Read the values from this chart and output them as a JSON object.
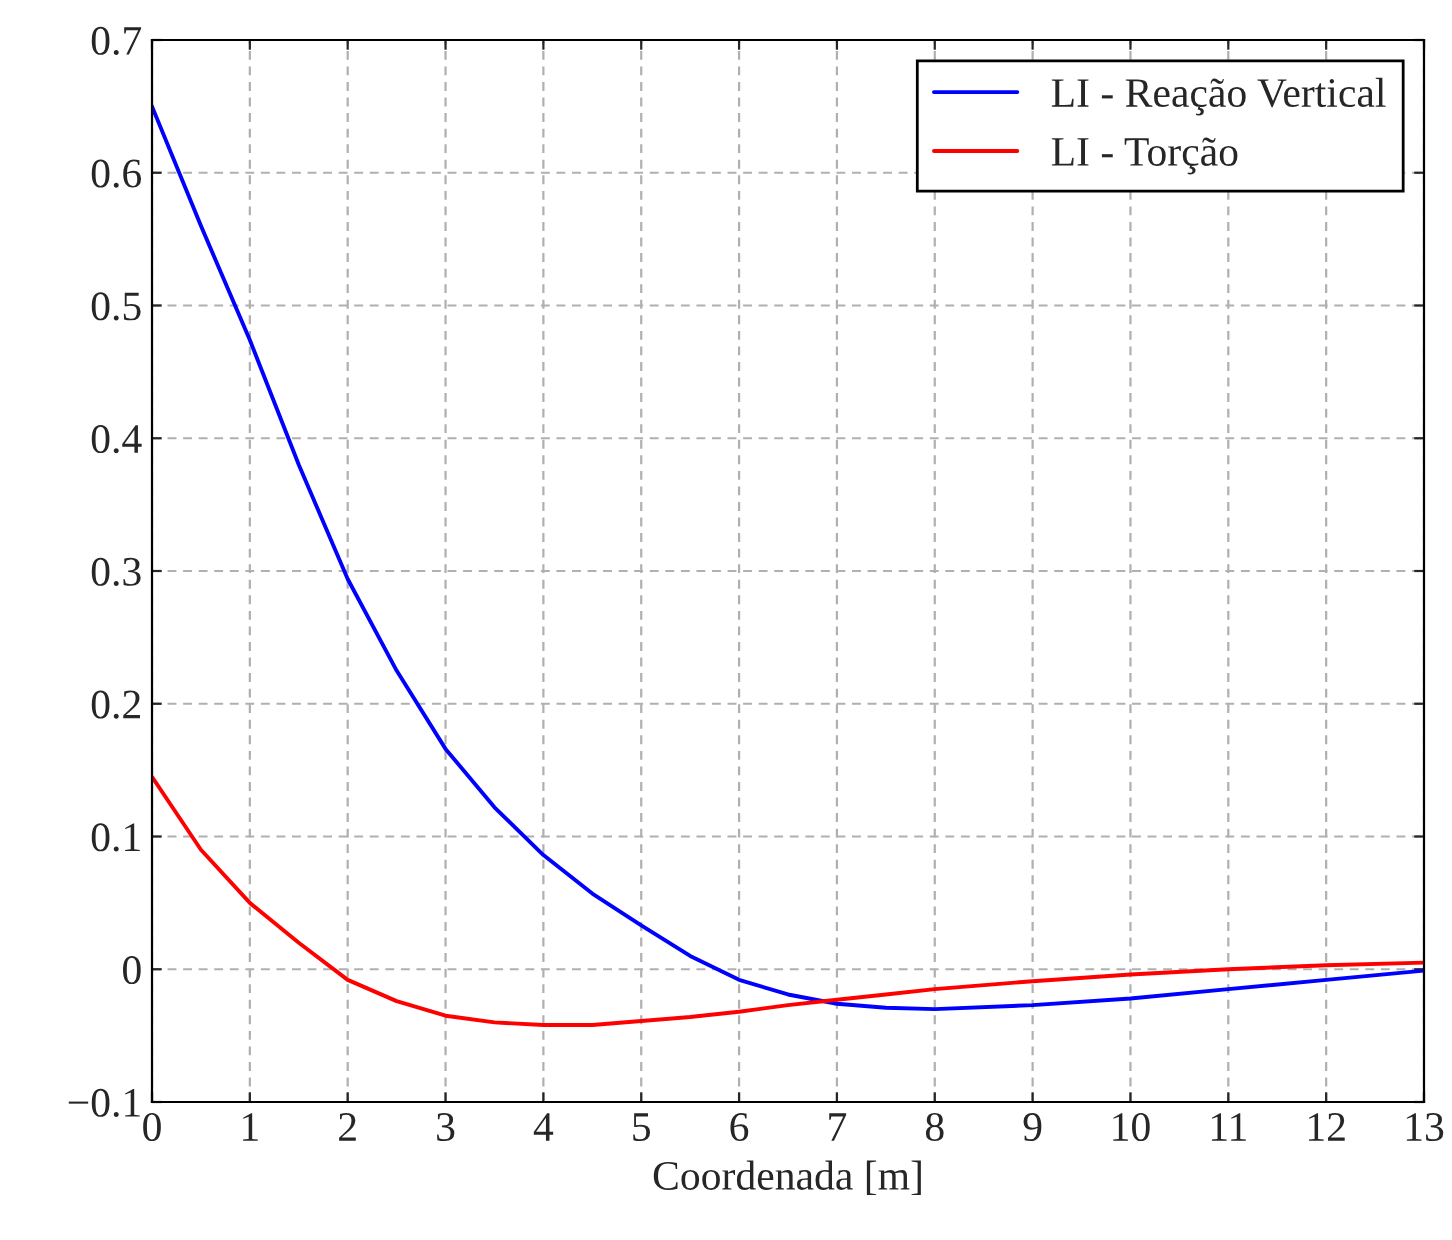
{
  "chart_data": {
    "type": "line",
    "xlabel": "Coordenada [m]",
    "x": [
      0,
      0.5,
      1,
      1.5,
      2,
      2.5,
      3,
      3.5,
      4,
      4.5,
      5,
      5.5,
      6,
      6.5,
      7,
      7.5,
      8,
      9,
      10,
      11,
      12,
      13
    ],
    "series": [
      {
        "name": "LI - Reação Vertical",
        "color": "#0000ff",
        "values": [
          0.65,
          0.56,
          0.474,
          0.38,
          0.294,
          0.225,
          0.166,
          0.122,
          0.086,
          0.057,
          0.033,
          0.01,
          -0.008,
          -0.019,
          -0.026,
          -0.029,
          -0.03,
          -0.027,
          -0.022,
          -0.015,
          -0.008,
          -0.001
        ]
      },
      {
        "name": "LI - Torção",
        "color": "#ff0000",
        "values": [
          0.145,
          0.09,
          0.05,
          0.02,
          -0.008,
          -0.024,
          -0.035,
          -0.04,
          -0.042,
          -0.042,
          -0.039,
          -0.036,
          -0.032,
          -0.027,
          -0.023,
          -0.019,
          -0.015,
          -0.009,
          -0.004,
          0.0,
          0.003,
          0.005
        ]
      }
    ],
    "xlim": [
      0,
      13
    ],
    "xticks": [
      0,
      1,
      2,
      3,
      4,
      5,
      6,
      7,
      8,
      9,
      10,
      11,
      12,
      13
    ],
    "ylim": [
      -0.1,
      0.7
    ],
    "yticks": [
      {
        "value": -0.1,
        "label": "−0.1"
      },
      0,
      0.1,
      0.2,
      0.3,
      0.4,
      0.5,
      0.6,
      0.7
    ],
    "grid": true,
    "legend": "top right",
    "line_style": "solid",
    "marker": "none"
  }
}
